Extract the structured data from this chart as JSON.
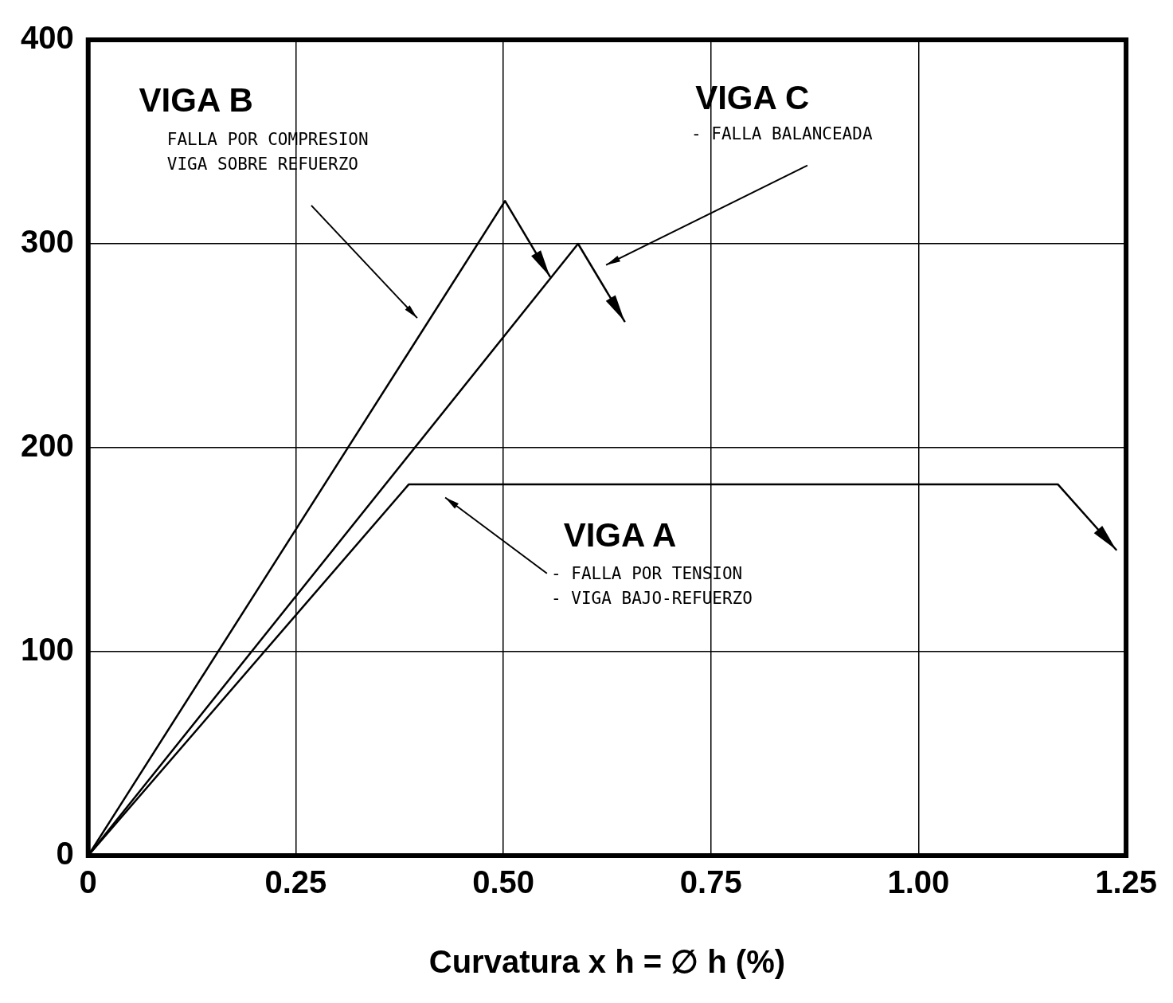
{
  "chart_data": {
    "type": "line",
    "xlabel": "Curvatura x h = ∅ h (%)",
    "series": [
      {
        "color": "#000000",
        "x": [
          0,
          0.386,
          1.168,
          1.238
        ],
        "values": [
          0,
          182,
          182,
          150
        ]
      },
      {
        "color": "#000000",
        "x": [
          0,
          0.502,
          0.556
        ],
        "values": [
          0,
          321,
          284
        ]
      },
      {
        "color": "#000000",
        "x": [
          0,
          0.59,
          0.646
        ],
        "values": [
          0,
          300,
          262
        ]
      }
    ],
    "annotations": [
      "VIGA A",
      "VIGA B",
      "VIGA C",
      "- FALLA POR TENSION\n- VIGA BAJO-REFUERZO",
      "FALLA POR COMPRESION\nVIGA SOBRE REFUERZO",
      "- FALLA BALANCEADA"
    ],
    "xlim": [
      0,
      1.25
    ],
    "ylim": [
      0,
      400
    ],
    "xticks": [
      0,
      0.25,
      {
        "value": 0.5,
        "label": "0.50"
      },
      0.75,
      {
        "value": 1,
        "label": "1.00"
      },
      1.25
    ],
    "yticks": [
      0,
      100,
      200,
      300,
      400
    ],
    "grid": true,
    "legend": false,
    "marker": "none",
    "line_style": "solid"
  }
}
